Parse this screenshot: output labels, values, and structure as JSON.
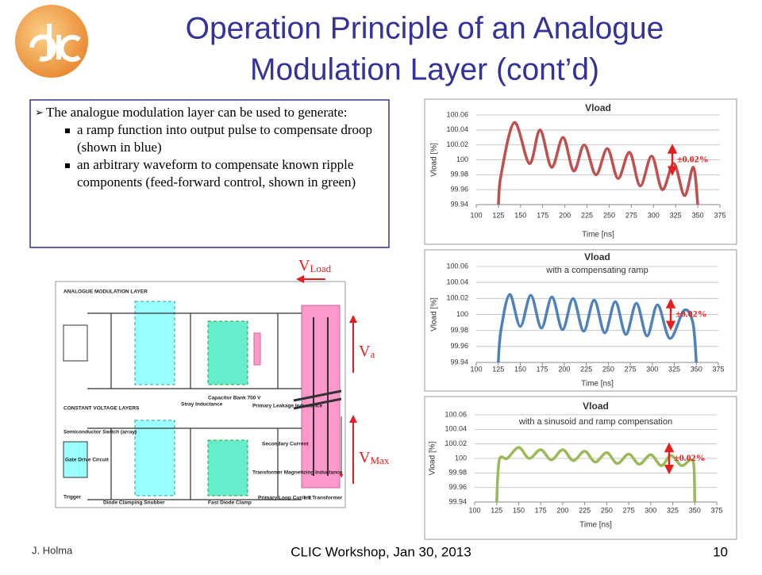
{
  "title": "Operation Principle of an Analogue Modulation Layer (cont’d)",
  "intro": "The analogue modulation layer can be used to generate:",
  "bullets": [
    "a ramp function into output pulse to compensate droop (shown in blue)",
    "an arbitrary waveform to compensate known ripple components (feed-forward control, shown in green)"
  ],
  "circuit": {
    "v_load": {
      "main": "V",
      "sub": "Load"
    },
    "v_a": {
      "main": "V",
      "sub": "a"
    },
    "v_max": {
      "main": "V",
      "sub": "Max"
    },
    "labels": [
      "ANALOGUE MODULATION LAYER",
      "CONSTANT VOLTAGE LAYERS",
      "Capacitor Bank 700 V",
      "Stray Inductance",
      "Primary Leakage Inductance",
      "Semiconductor Switch (array)",
      "Gate Drive Circuit",
      "Transformer Magnetizing Inductance",
      "Secondary Current",
      "Trigger",
      "Diode Clamping Snubber",
      "Fast Diode Clamp",
      "Primary Loop Current",
      "1:1 Transformer"
    ]
  },
  "footer": {
    "author": "J. Holma",
    "event": "CLIC Workshop, Jan 30, 2013",
    "page": "10"
  },
  "chart_data": [
    {
      "type": "line",
      "title": "Vload",
      "xlabel": "Time [ns]",
      "ylabel": "Vload [%]",
      "annotation": "±0.02%",
      "xlim": [
        100,
        375
      ],
      "xticks": [
        100,
        125,
        150,
        175,
        200,
        225,
        250,
        275,
        300,
        325,
        350,
        375
      ],
      "ylim": [
        99.94,
        100.06
      ],
      "yticks": [
        99.94,
        99.96,
        99.98,
        100,
        100.02,
        100.04,
        100.06
      ],
      "grid": true,
      "series": [
        {
          "color": "#c0504d",
          "x": [
            125,
            128,
            143,
            160,
            172,
            185,
            198,
            210,
            222,
            235,
            248,
            260,
            273,
            285,
            298,
            310,
            323,
            335,
            345,
            350
          ],
          "values": [
            99.94,
            99.98,
            100.05,
            99.995,
            100.04,
            99.99,
            100.03,
            99.985,
            100.02,
            99.98,
            100.015,
            99.975,
            100.01,
            99.965,
            100.005,
            99.96,
            99.995,
            99.952,
            99.99,
            99.94
          ]
        }
      ]
    },
    {
      "type": "line",
      "title": "Vload",
      "subtitle": "with a compensating ramp",
      "xlabel": "Time [ns]",
      "ylabel": "Vload [%]",
      "annotation": "±0.02%",
      "xlim": [
        100,
        375
      ],
      "xticks": [
        100,
        125,
        150,
        175,
        200,
        225,
        250,
        275,
        300,
        325,
        350,
        375
      ],
      "ylim": [
        99.94,
        100.06
      ],
      "yticks": [
        99.94,
        99.96,
        99.98,
        100,
        100.02,
        100.04,
        100.06
      ],
      "grid": true,
      "series": [
        {
          "color": "#4f81bd",
          "x": [
            125,
            128,
            138,
            150,
            162,
            174,
            186,
            198,
            210,
            222,
            234,
            246,
            258,
            270,
            282,
            294,
            306,
            320,
            336,
            346,
            350
          ],
          "values": [
            99.94,
            99.98,
            100.025,
            99.985,
            100.024,
            99.983,
            100.022,
            99.981,
            100.02,
            99.979,
            100.018,
            99.977,
            100.016,
            99.975,
            100.014,
            99.973,
            100.012,
            99.97,
            100.005,
            99.99,
            99.94
          ]
        }
      ]
    },
    {
      "type": "line",
      "title": "Vload",
      "subtitle": "with a sinusoid and ramp compensation",
      "xlabel": "Time [ns]",
      "ylabel": "Vload [%]",
      "annotation": "±0.02%",
      "xlim": [
        100,
        375
      ],
      "xticks": [
        100,
        125,
        150,
        175,
        200,
        225,
        250,
        275,
        300,
        325,
        350,
        375
      ],
      "ylim": [
        99.94,
        100.06
      ],
      "yticks": [
        99.94,
        99.96,
        99.98,
        100,
        100.02,
        100.04,
        100.06
      ],
      "grid": true,
      "series": [
        {
          "color": "#9bbb59",
          "x": [
            125,
            128,
            137,
            150,
            162,
            175,
            187,
            200,
            212,
            225,
            237,
            250,
            262,
            275,
            287,
            300,
            312,
            323,
            335,
            345,
            349,
            350
          ],
          "values": [
            99.94,
            99.998,
            100,
            100.015,
            100,
            100.012,
            99.998,
            100.012,
            99.997,
            100.01,
            99.995,
            100.008,
            99.993,
            100.006,
            99.992,
            100.005,
            99.99,
            100.004,
            99.99,
            99.998,
            99.99,
            99.94
          ]
        }
      ]
    }
  ]
}
